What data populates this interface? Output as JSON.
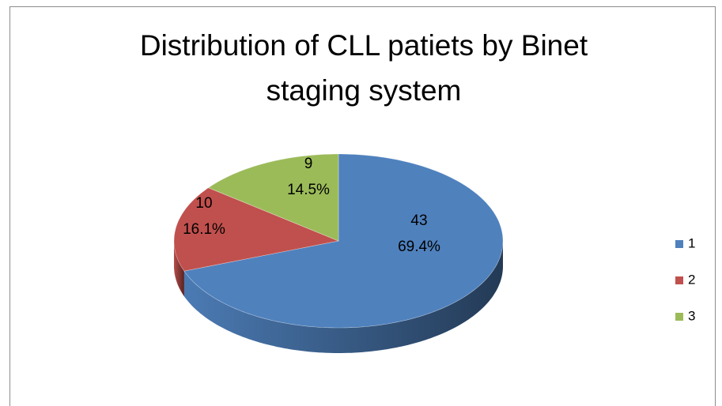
{
  "chart_data": {
    "type": "pie3d",
    "title": [
      "Distribution of CLL patiets by Binet",
      "staging system"
    ],
    "categories": [
      "1",
      "2",
      "3"
    ],
    "values": [
      43,
      10,
      9
    ],
    "percent_labels": [
      "69.4%",
      "16.1%",
      "14.5%"
    ],
    "colors": [
      "#4f81bd",
      "#c0504d",
      "#9bbb59"
    ],
    "legend": "right"
  }
}
